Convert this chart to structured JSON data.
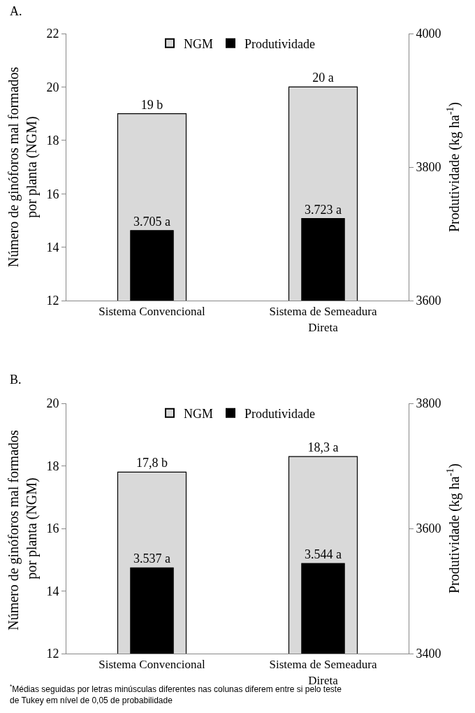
{
  "chart_data": [
    {
      "type": "bar",
      "title": "A.",
      "categories": [
        "Sistema Convencional",
        "Sistema de Semeadura Direta"
      ],
      "ylabel": "Número de ginóforos mal formados por planta (NGM)",
      "y2label": "Produtividade (kg ha$^{-1}$)",
      "ylim": [
        12,
        22
      ],
      "yticks": [
        12,
        14,
        16,
        18,
        20,
        22
      ],
      "y2lim": [
        3600,
        4000
      ],
      "y2ticks": [
        3600,
        3800,
        4000
      ],
      "legend": "top",
      "series": [
        {
          "name": "NGM",
          "color": "#d9d9d9",
          "values": [
            19,
            20
          ],
          "value_labels": [
            "19 b",
            "20 a"
          ]
        },
        {
          "name": "Produtividade",
          "color": "#000000",
          "axis": "y2",
          "values": [
            3705,
            3723
          ],
          "value_labels": [
            "3.705 a",
            "3.723 a"
          ]
        }
      ]
    },
    {
      "type": "bar",
      "title": "B.",
      "categories": [
        "Sistema Convencional",
        "Sistema de Semeadura Direta"
      ],
      "ylabel": "Número de ginóforos mal formados  por planta (NGM)",
      "y2label": "Produtividade (kg ha$^{-1}$)",
      "ylim": [
        12,
        20
      ],
      "yticks": [
        12,
        14,
        16,
        18,
        20
      ],
      "y2lim": [
        3400,
        3800
      ],
      "y2ticks": [
        3400,
        3600,
        3800
      ],
      "legend": "top",
      "annotations": [
        "$^{*}$Médias seguidas por letras minúsculas diferentes nas colunas diferem entre si pelo teste de Tukey em nível de 0,05 de probabilidade"
      ],
      "series": [
        {
          "name": "NGM",
          "color": "#d9d9d9",
          "values": [
            17.8,
            18.3
          ],
          "value_labels": [
            "17,8 b",
            "18,3 a"
          ]
        },
        {
          "name": "Produtividade",
          "color": "#000000",
          "axis": "y2",
          "values": [
            3537,
            3544
          ],
          "value_labels": [
            "3.537 a",
            "3.544 a"
          ]
        }
      ]
    }
  ]
}
